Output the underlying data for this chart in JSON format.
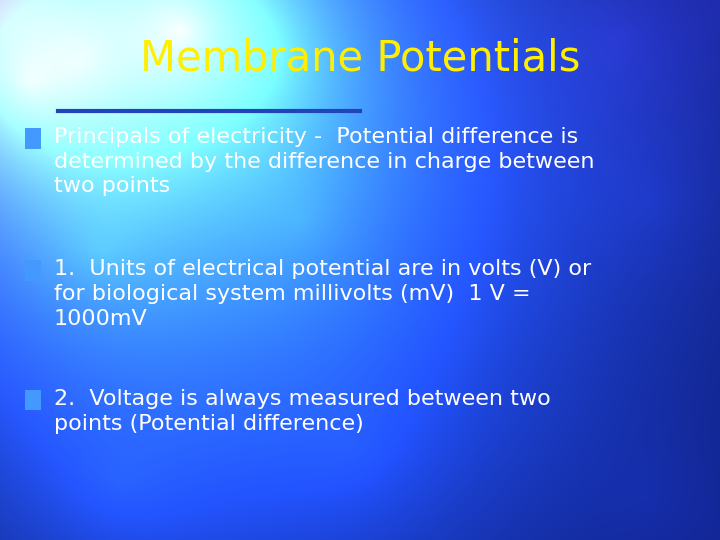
{
  "title": "Membrane Potentials",
  "title_color": "#FFEE00",
  "title_fontsize": 30,
  "title_font": "Comic Sans MS",
  "underline_color": "#2244BB",
  "bullet_color": "#4499FF",
  "text_color": "#FFFFFF",
  "body_fontsize": 16,
  "body_font": "Comic Sans MS",
  "bullets": [
    "Principals of electricity -  Potential difference is\ndetermined by the difference in charge between\ntwo points",
    "1.  Units of electrical potential are in volts (V) or\nfor biological system millivolts (mV)  1 V =\n1000mV",
    "2.  Voltage is always measured between two\npoints (Potential difference)"
  ],
  "figsize": [
    7.2,
    5.4
  ],
  "dpi": 100
}
